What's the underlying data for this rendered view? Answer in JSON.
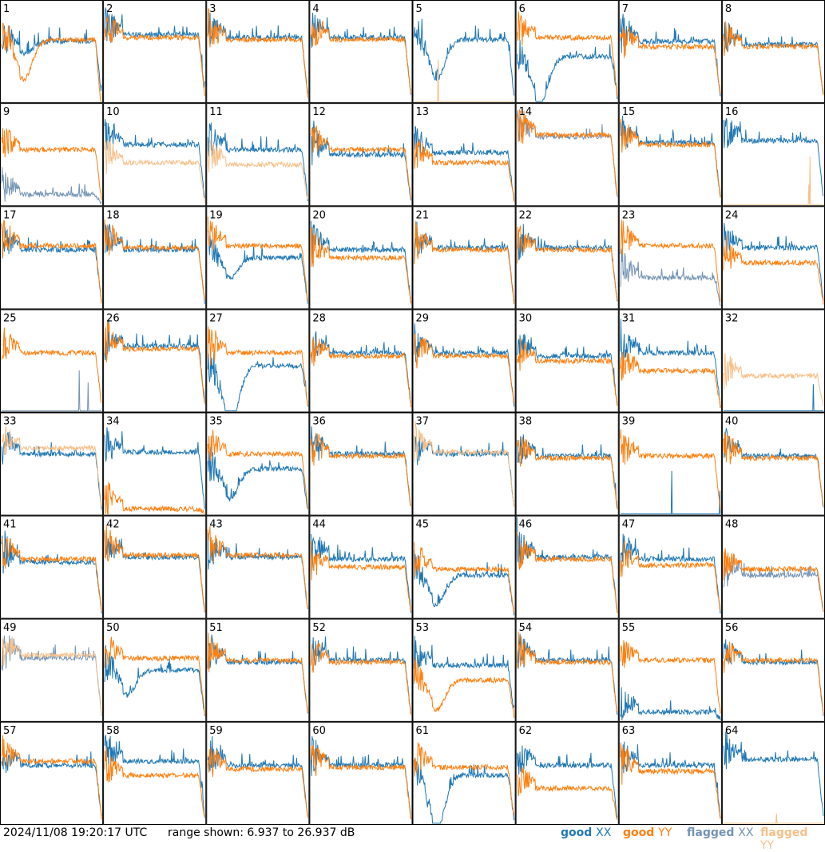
{
  "footer": {
    "timestamp": "2024/11/08 19:20:17 UTC",
    "range_text": "range shown: 6.937 to 26.937 dB"
  },
  "legend": [
    {
      "state": "good",
      "pol": "XX",
      "color": "#1f77b4"
    },
    {
      "state": "good",
      "pol": "YY",
      "color": "#ff7f0e"
    },
    {
      "state": "flagged",
      "pol": "XX",
      "color": "#7393b3"
    },
    {
      "state": "flagged",
      "pol": "YY",
      "color": "#f7c08a"
    }
  ],
  "chart_data": {
    "type": "line",
    "layout": "8x8 small multiples",
    "y_range_db": [
      6.937,
      26.937
    ],
    "grid": false,
    "legend_position": "bottom-right",
    "panels": [
      {
        "id": 1,
        "xx": "good",
        "yy": "good",
        "xx_level": 0.6,
        "yy_level": 0.62,
        "xx_dip": 0.12,
        "yy_dip": 0.4,
        "yy_end_drop": true
      },
      {
        "id": 2,
        "xx": "good",
        "yy": "good",
        "xx_level": 0.67,
        "yy_level": 0.64
      },
      {
        "id": 3,
        "xx": "good",
        "yy": "good",
        "xx_level": 0.64,
        "yy_level": 0.62
      },
      {
        "id": 4,
        "xx": "good",
        "yy": "good",
        "xx_level": 0.64,
        "yy_level": 0.62
      },
      {
        "id": 5,
        "xx": "good",
        "yy": "flagged",
        "xx_level": 0.62,
        "yy_level": 0.0,
        "xx_dip": 0.4
      },
      {
        "id": 6,
        "xx": "good",
        "yy": "good",
        "xx_level": 0.45,
        "yy_level": 0.64,
        "xx_dip": 0.5
      },
      {
        "id": 7,
        "xx": "good",
        "yy": "good",
        "xx_level": 0.6,
        "yy_level": 0.55
      },
      {
        "id": 8,
        "xx": "good",
        "yy": "good",
        "xx_level": 0.57,
        "yy_level": 0.55
      },
      {
        "id": 9,
        "xx": "flagged",
        "yy": "good",
        "xx_level": 0.1,
        "yy_level": 0.55
      },
      {
        "id": 10,
        "xx": "good",
        "yy": "flagged",
        "xx_level": 0.6,
        "yy_level": 0.42
      },
      {
        "id": 11,
        "xx": "good",
        "yy": "flagged",
        "xx_level": 0.55,
        "yy_level": 0.4
      },
      {
        "id": 12,
        "xx": "good",
        "yy": "good",
        "xx_level": 0.5,
        "yy_level": 0.55
      },
      {
        "id": 13,
        "xx": "good",
        "yy": "good",
        "xx_level": 0.52,
        "yy_level": 0.42
      },
      {
        "id": 14,
        "xx": "flagged",
        "yy": "good",
        "xx_level": 0.68,
        "yy_level": 0.7
      },
      {
        "id": 15,
        "xx": "good",
        "yy": "good",
        "xx_level": 0.62,
        "yy_level": 0.6
      },
      {
        "id": 16,
        "xx": "good",
        "yy": "flagged",
        "xx_level": 0.64,
        "yy_level": 0.0
      },
      {
        "id": 17,
        "xx": "good",
        "yy": "good",
        "xx_level": 0.58,
        "yy_level": 0.62
      },
      {
        "id": 18,
        "xx": "good",
        "yy": "good",
        "xx_level": 0.58,
        "yy_level": 0.6
      },
      {
        "id": 19,
        "xx": "good",
        "yy": "good",
        "xx_level": 0.5,
        "yy_level": 0.62,
        "xx_dip": 0.2
      },
      {
        "id": 20,
        "xx": "good",
        "yy": "good",
        "xx_level": 0.58,
        "yy_level": 0.5
      },
      {
        "id": 21,
        "xx": "good",
        "yy": "good",
        "xx_level": 0.6,
        "yy_level": 0.58
      },
      {
        "id": 22,
        "xx": "good",
        "yy": "good",
        "xx_level": 0.6,
        "yy_level": 0.58
      },
      {
        "id": 23,
        "xx": "flagged",
        "yy": "good",
        "xx_level": 0.3,
        "yy_level": 0.62
      },
      {
        "id": 24,
        "xx": "good",
        "yy": "good",
        "xx_level": 0.6,
        "yy_level": 0.45
      },
      {
        "id": 25,
        "xx": "flagged",
        "yy": "good",
        "xx_level": 0.0,
        "yy_level": 0.58
      },
      {
        "id": 26,
        "xx": "good",
        "yy": "good",
        "xx_level": 0.65,
        "yy_level": 0.62
      },
      {
        "id": 27,
        "xx": "good",
        "yy": "good",
        "xx_level": 0.45,
        "yy_level": 0.58,
        "xx_dip": 0.6
      },
      {
        "id": 28,
        "xx": "good",
        "yy": "good",
        "xx_level": 0.58,
        "yy_level": 0.55
      },
      {
        "id": 29,
        "xx": "good",
        "yy": "good",
        "xx_level": 0.58,
        "yy_level": 0.55
      },
      {
        "id": 30,
        "xx": "good",
        "yy": "good",
        "xx_level": 0.55,
        "yy_level": 0.5
      },
      {
        "id": 31,
        "xx": "good",
        "yy": "good",
        "xx_level": 0.58,
        "yy_level": 0.4
      },
      {
        "id": 32,
        "xx": "good",
        "yy": "flagged",
        "xx_level": 0.0,
        "yy_level": 0.35
      },
      {
        "id": 33,
        "xx": "good",
        "yy": "flagged",
        "xx_level": 0.6,
        "yy_level": 0.66
      },
      {
        "id": 34,
        "xx": "good",
        "yy": "good",
        "xx_level": 0.62,
        "yy_level": 0.05
      },
      {
        "id": 35,
        "xx": "good",
        "yy": "good",
        "xx_level": 0.45,
        "yy_level": 0.6,
        "xx_dip": 0.3
      },
      {
        "id": 36,
        "xx": "good",
        "yy": "good",
        "xx_level": 0.6,
        "yy_level": 0.58
      },
      {
        "id": 37,
        "xx": "good",
        "yy": "flagged",
        "xx_level": 0.6,
        "yy_level": 0.62
      },
      {
        "id": 38,
        "xx": "good",
        "yy": "good",
        "xx_level": 0.58,
        "yy_level": 0.56
      },
      {
        "id": 39,
        "xx": "good",
        "yy": "good",
        "xx_level": 0.0,
        "yy_level": 0.58
      },
      {
        "id": 40,
        "xx": "good",
        "yy": "good",
        "xx_level": 0.58,
        "yy_level": 0.56
      },
      {
        "id": 41,
        "xx": "good",
        "yy": "good",
        "xx_level": 0.55,
        "yy_level": 0.58
      },
      {
        "id": 42,
        "xx": "good",
        "yy": "good",
        "xx_level": 0.6,
        "yy_level": 0.62
      },
      {
        "id": 43,
        "xx": "good",
        "yy": "good",
        "xx_level": 0.6,
        "yy_level": 0.62
      },
      {
        "id": 44,
        "xx": "good",
        "yy": "good",
        "xx_level": 0.58,
        "yy_level": 0.5
      },
      {
        "id": 45,
        "xx": "good",
        "yy": "good",
        "xx_level": 0.42,
        "yy_level": 0.48,
        "xx_dip": 0.3
      },
      {
        "id": 46,
        "xx": "good",
        "yy": "good",
        "xx_level": 0.6,
        "yy_level": 0.58
      },
      {
        "id": 47,
        "xx": "good",
        "yy": "good",
        "xx_level": 0.58,
        "yy_level": 0.52
      },
      {
        "id": 48,
        "xx": "flagged",
        "yy": "good",
        "xx_level": 0.42,
        "yy_level": 0.48
      },
      {
        "id": 49,
        "xx": "flagged",
        "yy": "flagged",
        "xx_level": 0.62,
        "yy_level": 0.65
      },
      {
        "id": 50,
        "xx": "good",
        "yy": "good",
        "xx_level": 0.5,
        "yy_level": 0.62,
        "xx_dip": 0.25
      },
      {
        "id": 51,
        "xx": "good",
        "yy": "good",
        "xx_level": 0.58,
        "yy_level": 0.6
      },
      {
        "id": 52,
        "xx": "good",
        "yy": "good",
        "xx_level": 0.6,
        "yy_level": 0.58
      },
      {
        "id": 53,
        "xx": "good",
        "yy": "good",
        "xx_level": 0.55,
        "yy_level": 0.4,
        "yy_dip": 0.3
      },
      {
        "id": 54,
        "xx": "good",
        "yy": "good",
        "xx_level": 0.6,
        "yy_level": 0.58
      },
      {
        "id": 55,
        "xx": "good",
        "yy": "good",
        "xx_level": 0.08,
        "yy_level": 0.6
      },
      {
        "id": 56,
        "xx": "good",
        "yy": "good",
        "xx_level": 0.58,
        "yy_level": 0.6
      },
      {
        "id": 57,
        "xx": "good",
        "yy": "good",
        "xx_level": 0.58,
        "yy_level": 0.62
      },
      {
        "id": 58,
        "xx": "good",
        "yy": "good",
        "xx_level": 0.62,
        "yy_level": 0.48
      },
      {
        "id": 59,
        "xx": "good",
        "yy": "good",
        "xx_level": 0.58,
        "yy_level": 0.54
      },
      {
        "id": 60,
        "xx": "good",
        "yy": "good",
        "xx_level": 0.58,
        "yy_level": 0.56
      },
      {
        "id": 61,
        "xx": "good",
        "yy": "good",
        "xx_level": 0.48,
        "yy_level": 0.56,
        "xx_dip": 0.55
      },
      {
        "id": 62,
        "xx": "good",
        "yy": "good",
        "xx_level": 0.58,
        "yy_level": 0.35
      },
      {
        "id": 63,
        "xx": "good",
        "yy": "good",
        "xx_level": 0.58,
        "yy_level": 0.52
      },
      {
        "id": 64,
        "xx": "good",
        "yy": "flagged",
        "xx_level": 0.64,
        "yy_level": 0.0
      }
    ]
  }
}
